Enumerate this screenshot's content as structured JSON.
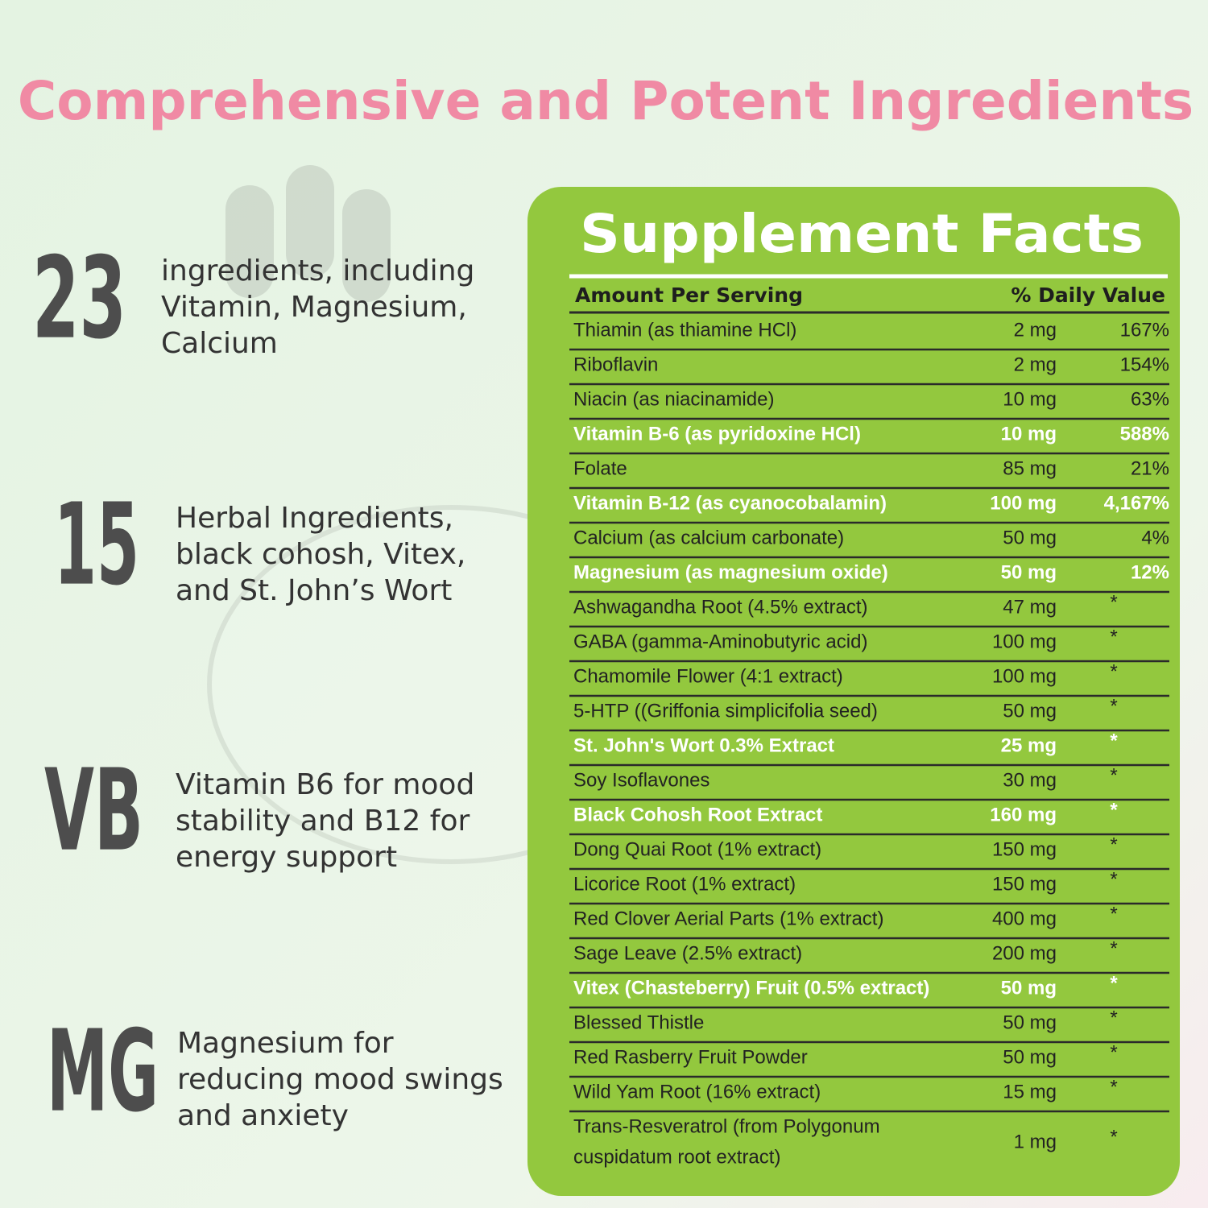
{
  "title": "Comprehensive and Potent Ingredients",
  "features": [
    {
      "big": "23",
      "lines": [
        "ingredients, including",
        "Vitamin, Magnesium,",
        "Calcium"
      ]
    },
    {
      "big": "15",
      "lines": [
        "Herbal Ingredients,",
        "black cohosh, Vitex,",
        "and St. John’s Wort"
      ]
    },
    {
      "big": "VB",
      "lines": [
        "Vitamin B6 for mood",
        "stability and B12 for",
        "energy support"
      ]
    },
    {
      "big": "MG",
      "lines": [
        "Magnesium for",
        "reducing mood swings",
        "and anxiety"
      ]
    }
  ],
  "panel": {
    "title": "Supplement Facts",
    "header": {
      "amount": "Amount Per Serving",
      "dv": "% Daily Value"
    },
    "rows": [
      {
        "name": "Thiamin (as thiamine HCl)",
        "amount": "2 mg",
        "dv": "167%"
      },
      {
        "name": "Riboflavin",
        "amount": "2 mg",
        "dv": "154%"
      },
      {
        "name": "Niacin (as niacinamide)",
        "amount": "10 mg",
        "dv": "63%"
      },
      {
        "name": "Vitamin B-6 (as pyridoxine HCl)",
        "amount": "10 mg",
        "dv": "588%",
        "bold": true
      },
      {
        "name": "Folate",
        "amount": "85 mg",
        "dv": "21%"
      },
      {
        "name": "Vitamin B-12 (as cyanocobalamin)",
        "amount": "100 mg",
        "dv": "4,167%",
        "bold": true
      },
      {
        "name": "Calcium (as calcium carbonate)",
        "amount": "50 mg",
        "dv": "4%"
      },
      {
        "name": "Magnesium (as magnesium oxide)",
        "amount": "50 mg",
        "dv": "12%",
        "bold": true
      },
      {
        "name": "Ashwagandha Root (4.5% extract)",
        "amount": "47 mg",
        "dv": "*"
      },
      {
        "name": "GABA (gamma-Aminobutyric acid)",
        "amount": "100 mg",
        "dv": "*"
      },
      {
        "name": "Chamomile Flower (4:1 extract)",
        "amount": "100 mg",
        "dv": "*"
      },
      {
        "name": "5-HTP ((Griffonia simplicifolia seed)",
        "amount": "50 mg",
        "dv": "*"
      },
      {
        "name": "St. John's Wort 0.3% Extract",
        "amount": "25 mg",
        "dv": "*",
        "bold": true
      },
      {
        "name": "Soy Isoflavones",
        "amount": "30 mg",
        "dv": "*"
      },
      {
        "name": "Black Cohosh Root Extract",
        "amount": "160 mg",
        "dv": "*",
        "bold": true
      },
      {
        "name": "Dong Quai Root (1% extract)",
        "amount": "150 mg",
        "dv": "*"
      },
      {
        "name": "Licorice Root (1% extract)",
        "amount": "150 mg",
        "dv": "*"
      },
      {
        "name": "Red Clover Aerial Parts (1% extract)",
        "amount": "400 mg",
        "dv": "*"
      },
      {
        "name": "Sage Leave (2.5% extract)",
        "amount": "200 mg",
        "dv": "*"
      },
      {
        "name": "Vitex (Chasteberry) Fruit (0.5% extract)",
        "amount": "50 mg",
        "dv": "*",
        "bold": true
      },
      {
        "name": "Blessed Thistle",
        "amount": "50 mg",
        "dv": "*"
      },
      {
        "name": "Red Rasberry Fruit Powder",
        "amount": "50 mg",
        "dv": "*"
      },
      {
        "name": "Wild Yam Root (16% extract)",
        "amount": "15 mg",
        "dv": "*"
      },
      {
        "name": [
          "Trans-Resveratrol (from Polygonum",
          "cuspidatum root extract)"
        ],
        "amount": "1 mg",
        "dv": "*"
      }
    ]
  }
}
